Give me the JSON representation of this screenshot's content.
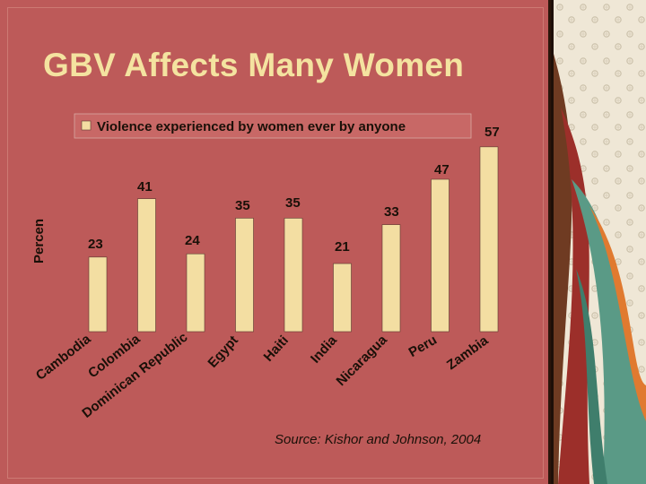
{
  "slide": {
    "title": "GBV Affects Many Women",
    "source": "Source: Kishor and Johnson, 2004"
  },
  "colors": {
    "background": "#bd5a59",
    "bar": "#f3dea2",
    "title": "#f4e3a0",
    "text": "#1a1008"
  },
  "chart_data": {
    "type": "bar",
    "title": "",
    "xlabel": "",
    "ylabel": "Percen",
    "legend": {
      "position": "top",
      "entries": [
        "Violence experienced by women ever by anyone"
      ]
    },
    "grid": false,
    "ylim": [
      0,
      60
    ],
    "categories": [
      "Cambodia",
      "Colombia",
      "Dominican Republic",
      "Egypt",
      "Haiti",
      "India",
      "Nicaragua",
      "Peru",
      "Zambia"
    ],
    "series": [
      {
        "name": "Violence experienced by women ever by anyone",
        "values": [
          23,
          41,
          24,
          35,
          35,
          21,
          33,
          47,
          57
        ]
      }
    ]
  }
}
